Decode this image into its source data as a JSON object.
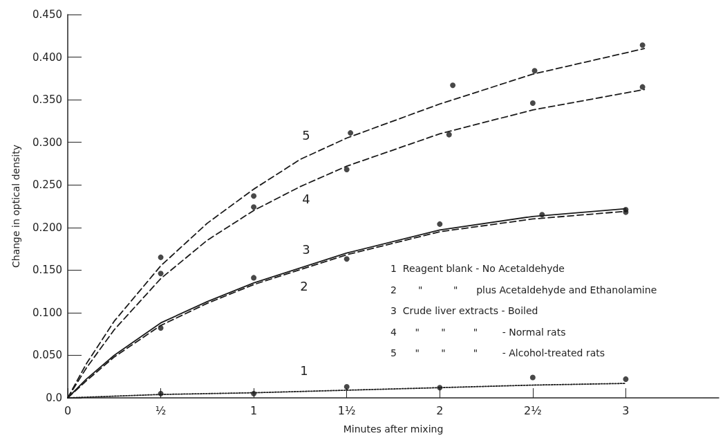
{
  "chart_data": {
    "type": "line",
    "xlabel": "Minutes after mixing",
    "ylabel": "Change in optical density",
    "xlim": [
      0,
      3.5
    ],
    "xticks": [
      {
        "value": 0,
        "label": "0"
      },
      {
        "value": 0.5,
        "label": "½"
      },
      1,
      {
        "value": 1.5,
        "label": "1½"
      },
      2,
      {
        "value": 2.5,
        "label": "2½"
      },
      3
    ],
    "ylim": [
      0,
      0.45
    ],
    "yticks": [
      {
        "value": 0,
        "label": "0.0"
      },
      {
        "value": 0.05,
        "label": "0.050"
      },
      {
        "value": 0.1,
        "label": "0.100"
      },
      {
        "value": 0.15,
        "label": "0.150"
      },
      {
        "value": 0.2,
        "label": "0.200"
      },
      {
        "value": 0.25,
        "label": "0.250"
      },
      {
        "value": 0.3,
        "label": "0.300"
      },
      {
        "value": 0.35,
        "label": "0.350"
      },
      {
        "value": 0.4,
        "label": "0.400"
      },
      {
        "value": 0.45,
        "label": "0.450"
      }
    ],
    "grid": false,
    "series": [
      {
        "marker": "none",
        "line_style": "dashed",
        "color": "#1a1a1a",
        "x": [
          0,
          0.1,
          0.25,
          0.5,
          0.75,
          1,
          1.25,
          1.5,
          2,
          2.5,
          3.1
        ],
        "values": [
          0,
          0.04,
          0.09,
          0.155,
          0.205,
          0.245,
          0.28,
          0.305,
          0.345,
          0.38,
          0.41
        ]
      },
      {
        "marker": "none",
        "line_style": "dashed",
        "color": "#1a1a1a",
        "x": [
          0,
          0.1,
          0.25,
          0.5,
          0.75,
          1,
          1.25,
          1.5,
          2,
          2.5,
          3.1
        ],
        "values": [
          0,
          0.035,
          0.08,
          0.14,
          0.185,
          0.22,
          0.248,
          0.272,
          0.31,
          0.338,
          0.362
        ]
      },
      {
        "marker": "none",
        "line_style": "solid",
        "color": "#1a1a1a",
        "x": [
          0,
          0.1,
          0.25,
          0.5,
          0.75,
          1,
          1.5,
          2,
          2.5,
          3
        ],
        "values": [
          0,
          0.022,
          0.05,
          0.088,
          0.113,
          0.135,
          0.17,
          0.197,
          0.213,
          0.222
        ]
      },
      {
        "marker": "none",
        "line_style": "dashed",
        "color": "#1a1a1a",
        "x": [
          0,
          0.1,
          0.25,
          0.5,
          0.75,
          1,
          1.5,
          2,
          2.5,
          3
        ],
        "values": [
          0,
          0.02,
          0.048,
          0.085,
          0.111,
          0.133,
          0.168,
          0.195,
          0.21,
          0.219
        ]
      },
      {
        "marker": "none",
        "line_style": "dotted",
        "color": "#1a1a1a",
        "x": [
          0,
          0.5,
          1,
          1.5,
          2,
          2.5,
          3
        ],
        "values": [
          0,
          0.004,
          0.006,
          0.009,
          0.012,
          0.015,
          0.017
        ]
      },
      {
        "type": "scatter",
        "marker": "circle",
        "color": "#1a1a1a",
        "x": [
          0.5,
          1,
          1.52,
          2.07,
          2.51,
          3.09
        ],
        "values": [
          0.165,
          0.237,
          0.311,
          0.367,
          0.384,
          0.414
        ]
      },
      {
        "type": "scatter",
        "marker": "circle",
        "color": "#1a1a1a",
        "x": [
          0.5,
          1,
          1.5,
          2.05,
          2.5,
          3.09
        ],
        "values": [
          0.146,
          0.224,
          0.268,
          0.309,
          0.346,
          0.365
        ]
      },
      {
        "type": "scatter",
        "marker": "circle",
        "color": "#1a1a1a",
        "x": [
          0.5,
          1,
          1.5,
          2,
          2.55,
          3,
          3
        ],
        "values": [
          0.082,
          0.141,
          0.163,
          0.204,
          0.215,
          0.221,
          0.218
        ]
      },
      {
        "type": "scatter",
        "marker": "circle",
        "color": "#1a1a1a",
        "x": [
          0.5,
          1,
          1.5,
          2,
          2.5,
          3
        ],
        "values": [
          0.005,
          0.005,
          0.013,
          0.012,
          0.024,
          0.022
        ]
      }
    ],
    "annotations": [
      "5",
      "4",
      "3",
      "2",
      "1",
      "1  Reagent blank - No Acetaldehyde",
      "2       \"          \"      plus Acetaldehyde and Ethanolamine",
      "3  Crude liver extracts - Boiled",
      "4      \"       \"         \"        - Normal rats",
      "5      \"       \"         \"        - Alcohol-treated rats"
    ]
  }
}
